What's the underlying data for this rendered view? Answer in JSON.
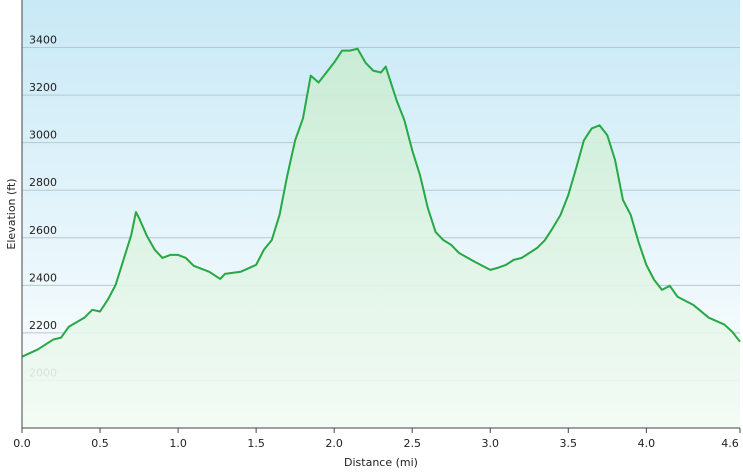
{
  "chart_data": {
    "type": "area",
    "xlabel": "Distance (mi)",
    "ylabel": "Elevation (ft)",
    "x": [
      0.0,
      0.1,
      0.2,
      0.25,
      0.3,
      0.4,
      0.45,
      0.5,
      0.55,
      0.6,
      0.65,
      0.7,
      0.73,
      0.75,
      0.8,
      0.85,
      0.9,
      0.95,
      1.0,
      1.05,
      1.1,
      1.2,
      1.27,
      1.3,
      1.4,
      1.5,
      1.55,
      1.6,
      1.65,
      1.7,
      1.75,
      1.8,
      1.85,
      1.9,
      1.95,
      2.0,
      2.05,
      2.1,
      2.15,
      2.2,
      2.25,
      2.3,
      2.33,
      2.4,
      2.45,
      2.5,
      2.55,
      2.6,
      2.65,
      2.7,
      2.75,
      2.8,
      2.9,
      3.0,
      3.05,
      3.1,
      3.15,
      3.2,
      3.3,
      3.35,
      3.4,
      3.45,
      3.5,
      3.55,
      3.6,
      3.65,
      3.7,
      3.75,
      3.8,
      3.85,
      3.9,
      3.95,
      4.0,
      4.05,
      4.1,
      4.15,
      4.2,
      4.3,
      4.4,
      4.5,
      4.55,
      4.6
    ],
    "series": [
      {
        "name": "Elevation",
        "color": "#26a844",
        "values": [
          2100,
          2130,
          2172,
          2180,
          2226,
          2264,
          2297,
          2290,
          2340,
          2402,
          2507,
          2612,
          2708,
          2683,
          2608,
          2550,
          2515,
          2528,
          2528,
          2515,
          2482,
          2457,
          2427,
          2448,
          2457,
          2486,
          2550,
          2590,
          2696,
          2863,
          3010,
          3102,
          3282,
          3253,
          3295,
          3337,
          3387,
          3387,
          3395,
          3337,
          3303,
          3295,
          3320,
          3178,
          3094,
          2968,
          2863,
          2725,
          2624,
          2590,
          2570,
          2536,
          2499,
          2465,
          2474,
          2486,
          2507,
          2515,
          2557,
          2590,
          2641,
          2696,
          2780,
          2892,
          3010,
          3060,
          3073,
          3031,
          2926,
          2759,
          2696,
          2582,
          2486,
          2423,
          2381,
          2398,
          2352,
          2318,
          2264,
          2235,
          2205,
          2163
        ]
      }
    ],
    "xlim": [
      0,
      4.6
    ],
    "xticks": [
      {
        "value": 0,
        "label": "0.0"
      },
      0.5,
      {
        "value": 1,
        "label": "1.0"
      },
      1.5,
      {
        "value": 2,
        "label": "2.0"
      },
      2.5,
      {
        "value": 3,
        "label": "3.0"
      },
      3.5,
      {
        "value": 4,
        "label": "4.0"
      },
      4.6
    ],
    "ylim": [
      1800,
      3600
    ],
    "yticks": [
      2000,
      2200,
      2400,
      2600,
      2800,
      3000,
      3200,
      3400
    ],
    "grid": true
  }
}
